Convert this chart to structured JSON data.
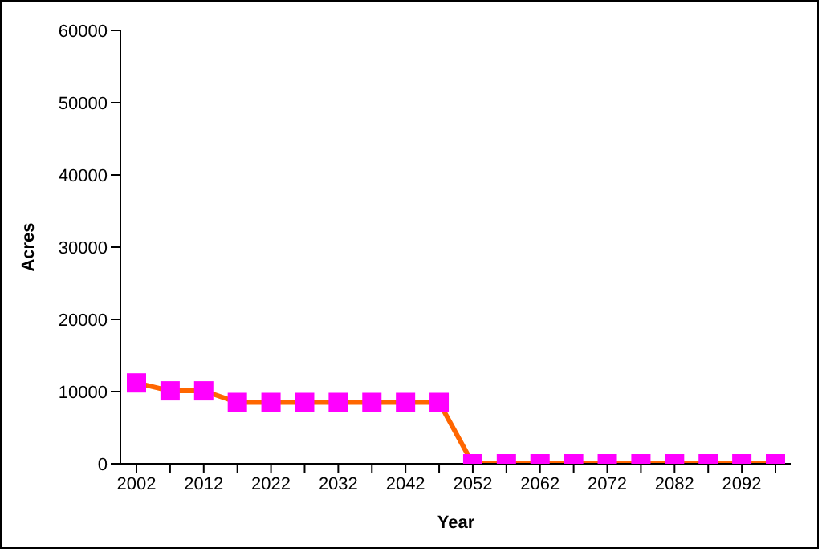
{
  "chart_data": {
    "type": "line",
    "xlabel": "Year",
    "ylabel": "Acres",
    "categories": [
      "2002",
      null,
      "2012",
      null,
      "2022",
      null,
      "2032",
      null,
      "2042",
      null,
      "2052",
      null,
      "2062",
      null,
      "2072",
      null,
      "2082",
      null,
      "2092",
      null
    ],
    "series": [
      {
        "color": "#ff6600",
        "colors": [
          "#ff00ff",
          "#ff00ff",
          "#ff00ff",
          "#ff00ff",
          "#ff00ff",
          "#ff00ff",
          "#ff00ff",
          "#ff00ff",
          "#ff00ff",
          "#ff00ff",
          "#ff00ff",
          "#ff00ff",
          "#ff00ff",
          "#ff00ff",
          "#ff00ff",
          "#ff00ff",
          "#ff00ff",
          "#ff00ff",
          "#ff00ff",
          "#ff00ff"
        ],
        "values": [
          11200,
          10100,
          10100,
          8500,
          8500,
          8500,
          8500,
          8500,
          8500,
          8500,
          0,
          0,
          0,
          0,
          0,
          0,
          0,
          0,
          0,
          0
        ]
      }
    ],
    "ylim": [
      0,
      60000
    ],
    "yticks": [
      0,
      10000,
      20000,
      30000,
      40000,
      50000,
      60000
    ],
    "marker": "square",
    "legend": false,
    "grid": false
  }
}
